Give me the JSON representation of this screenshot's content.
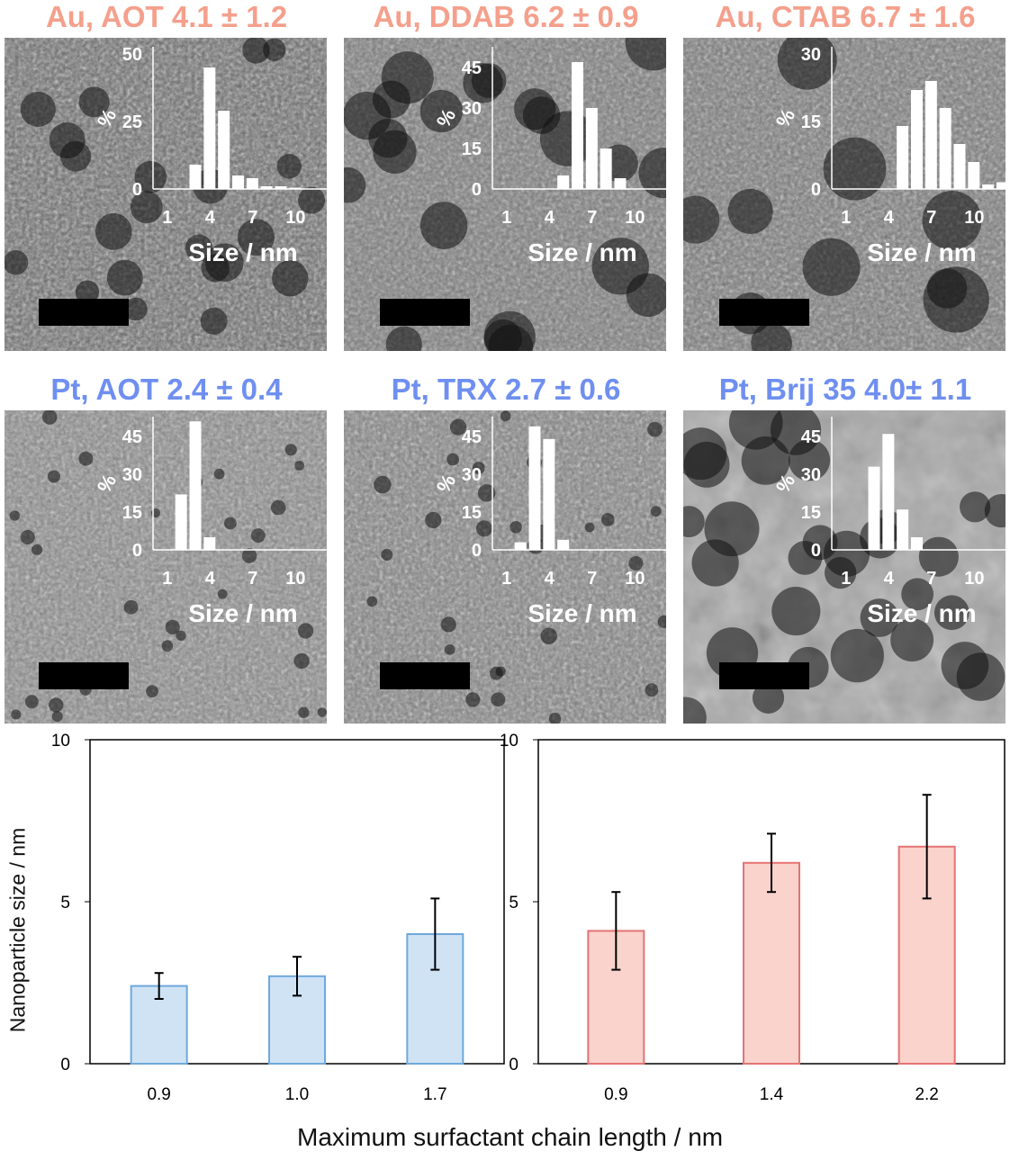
{
  "panels": [
    {
      "title": "Au, AOT 4.1 ± 1.2",
      "metal": "Au",
      "ylabel": "%",
      "yticks": [
        0,
        25,
        50
      ],
      "ymax": 50,
      "xlabel": "Size / nm",
      "xticks": [
        1,
        4,
        7,
        10
      ],
      "bins": [
        3,
        4,
        5,
        6,
        7,
        8,
        9,
        10
      ],
      "values": [
        9,
        45,
        29,
        5,
        4,
        1,
        1,
        0.5
      ]
    },
    {
      "title": "Au, DDAB 6.2 ± 0.9",
      "metal": "Au",
      "ylabel": "%",
      "yticks": [
        0,
        15,
        30,
        45
      ],
      "ymax": 50,
      "xlabel": "Size / nm",
      "xticks": [
        1,
        4,
        7,
        10
      ],
      "bins": [
        5,
        6,
        7,
        8,
        9
      ],
      "values": [
        5,
        47,
        30,
        15,
        4
      ]
    },
    {
      "title": "Au, CTAB 6.7 ± 1.6",
      "metal": "Au",
      "ylabel": "%",
      "yticks": [
        0,
        15,
        30
      ],
      "ymax": 30,
      "xlabel": "Size / nm",
      "xticks": [
        1,
        4,
        7,
        10
      ],
      "bins": [
        5,
        6,
        7,
        8,
        9,
        10,
        11,
        12
      ],
      "values": [
        14,
        22,
        24,
        18,
        10,
        6,
        1,
        1.5
      ]
    },
    {
      "title": "Pt, AOT 2.4 ± 0.4",
      "metal": "Pt",
      "ylabel": "%",
      "yticks": [
        0,
        15,
        30,
        45
      ],
      "ymax": 50,
      "xlabel": "Size / nm",
      "xticks": [
        1,
        4,
        7,
        10
      ],
      "bins": [
        2,
        3,
        4
      ],
      "values": [
        22,
        51,
        5
      ]
    },
    {
      "title": "Pt, TRX 2.7 ± 0.6",
      "metal": "Pt",
      "ylabel": "%",
      "yticks": [
        0,
        15,
        30,
        45
      ],
      "ymax": 50,
      "xlabel": "Size / nm",
      "xticks": [
        1,
        4,
        7,
        10
      ],
      "bins": [
        2,
        3,
        4,
        5
      ],
      "values": [
        3,
        49,
        44,
        4
      ]
    },
    {
      "title": "Pt, Brij 35 4.0± 1.1",
      "metal": "Pt",
      "ylabel": "%",
      "yticks": [
        0,
        15,
        30,
        45
      ],
      "ymax": 50,
      "xlabel": "Size / nm",
      "xticks": [
        1,
        4,
        7,
        10
      ],
      "bins": [
        3,
        4,
        5,
        6
      ],
      "values": [
        33,
        46,
        16,
        5
      ]
    }
  ],
  "colors": {
    "Au_title": "#f4a08c",
    "Pt_title": "#6f8ff0",
    "Pt_bar_fill": "#cfe3f5",
    "Pt_bar_stroke": "#6fa8dc",
    "Au_bar_fill": "#f9d3cc",
    "Au_bar_stroke": "#e57373"
  },
  "chart_data": [
    {
      "type": "bar",
      "categories": [
        "0.9",
        "1.0",
        "1.7"
      ],
      "values": [
        2.4,
        2.7,
        4.0
      ],
      "errors": [
        0.4,
        0.6,
        1.1
      ],
      "ylim": [
        0,
        10
      ],
      "yticks": [
        0,
        5,
        10
      ],
      "ylabel": "Nanoparticle size / nm",
      "xlabel": "Maximum surfactant chain length / nm",
      "color": "#cfe3f5"
    },
    {
      "type": "bar",
      "categories": [
        "0.9",
        "1.4",
        "2.2"
      ],
      "values": [
        4.1,
        6.2,
        6.7
      ],
      "errors": [
        1.2,
        0.9,
        1.6
      ],
      "ylim": [
        0,
        10
      ],
      "yticks": [
        0,
        5,
        10
      ],
      "ylabel": "",
      "xlabel": "Maximum surfactant chain length / nm",
      "color": "#f9d3cc"
    }
  ]
}
